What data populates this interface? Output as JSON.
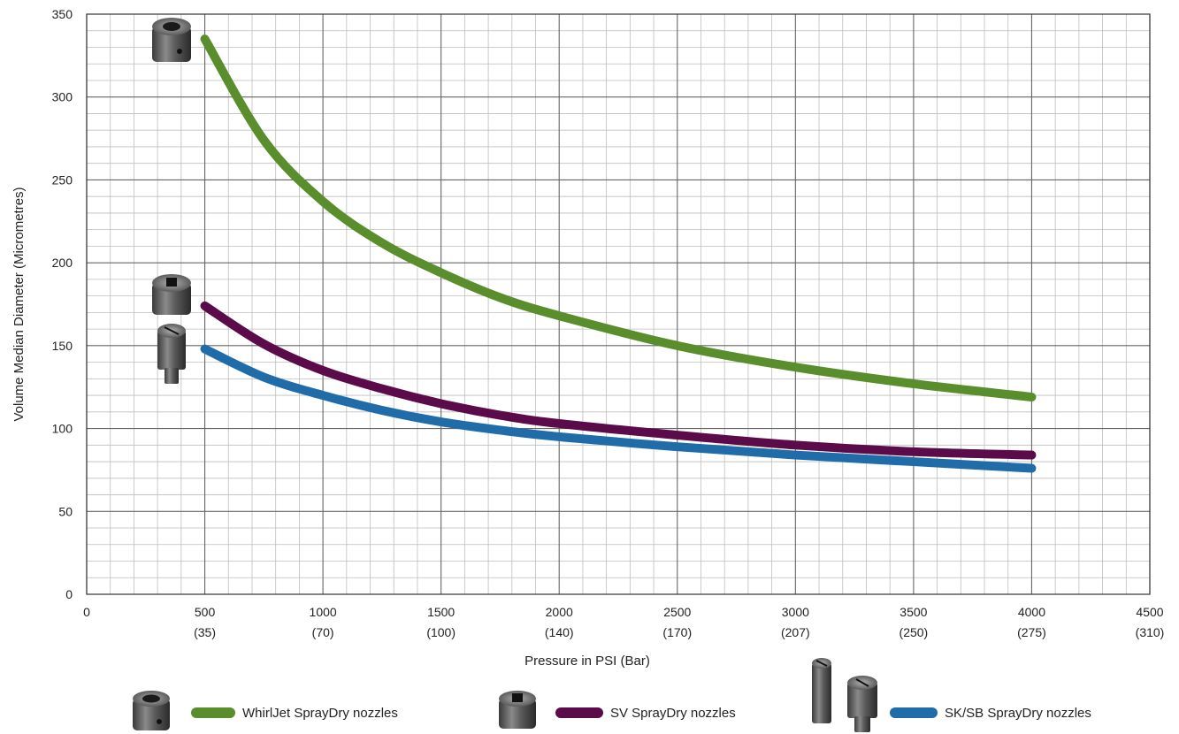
{
  "chart_data": {
    "type": "line",
    "title": "",
    "xlabel": "Pressure in PSI (Bar)",
    "ylabel": "Volume Median Diameter (Micrometres)",
    "xlim": [
      0,
      4500
    ],
    "ylim": [
      0,
      350
    ],
    "x_ticks": [
      {
        "value": 0,
        "label": "0",
        "sublabel": ""
      },
      {
        "value": 500,
        "label": "500",
        "sublabel": "(35)"
      },
      {
        "value": 1000,
        "label": "1000",
        "sublabel": "(70)"
      },
      {
        "value": 1500,
        "label": "1500",
        "sublabel": "(100)"
      },
      {
        "value": 2000,
        "label": "2000",
        "sublabel": "(140)"
      },
      {
        "value": 2500,
        "label": "2500",
        "sublabel": "(170)"
      },
      {
        "value": 3000,
        "label": "3000",
        "sublabel": "(207)"
      },
      {
        "value": 3500,
        "label": "3500",
        "sublabel": "(250)"
      },
      {
        "value": 4000,
        "label": "4000",
        "sublabel": "(275)"
      },
      {
        "value": 4500,
        "label": "4500",
        "sublabel": "(310)"
      }
    ],
    "y_ticks": [
      0,
      50,
      100,
      150,
      200,
      250,
      300,
      350
    ],
    "grid": true,
    "legend_position": "bottom",
    "x": [
      500,
      750,
      1000,
      1250,
      1500,
      1750,
      2000,
      2500,
      3000,
      3500,
      4000
    ],
    "series": [
      {
        "name": "WhirlJet SprayDry nozzles",
        "color": "#5a8e2c",
        "values": [
          335,
          274,
          237,
          212,
          194,
          179,
          168,
          150,
          137,
          127,
          119
        ]
      },
      {
        "name": "SV SprayDry nozzles",
        "color": "#5b0a4a",
        "values": [
          174,
          151,
          135,
          124,
          115,
          108,
          103,
          96,
          90,
          86,
          84
        ]
      },
      {
        "name": "SK/SB SprayDry nozzles",
        "color": "#1f6ca8",
        "values": [
          148,
          131,
          120,
          111,
          104,
          99,
          95,
          89,
          84,
          80,
          76
        ]
      }
    ],
    "nozzle_icons": [
      "whirljet-nozzle-icon",
      "sv-nozzle-icon",
      "sksb-nozzle-icon"
    ]
  }
}
